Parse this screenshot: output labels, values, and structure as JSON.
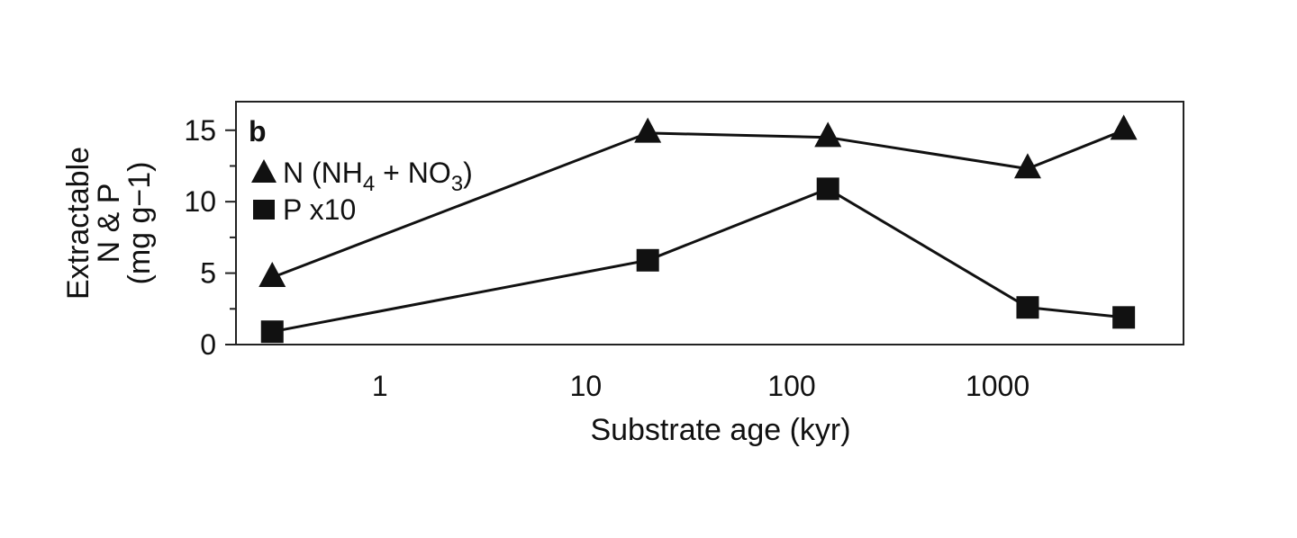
{
  "chart_data": {
    "type": "line",
    "panel_label": "b",
    "xlabel": "Substrate age (kyr)",
    "ylabel_lines": [
      "Extractable",
      "N & P",
      "(mg g−1)"
    ],
    "x_scale": "log",
    "xlim": [
      0.2,
      8000
    ],
    "ylim": [
      0,
      17
    ],
    "x_ticks": [
      1,
      10,
      100,
      1000
    ],
    "x_tick_labels": [
      "1",
      "10",
      "100",
      "1000"
    ],
    "y_ticks": [
      0,
      5,
      10,
      15
    ],
    "y_tick_labels": [
      "0",
      "5",
      "10",
      "15"
    ],
    "grid": false,
    "legend_position": "top-left",
    "series": [
      {
        "key": "N",
        "legend": {
          "main": "N (NH",
          "sub1": "4",
          "mid": " + NO",
          "sub2": "3",
          "end": ")"
        },
        "marker": "triangle",
        "x": [
          0.3,
          20,
          150,
          1400,
          4100
        ],
        "y": [
          4.7,
          14.8,
          14.5,
          12.3,
          15.0
        ]
      },
      {
        "key": "P",
        "legend": {
          "main": "P x10"
        },
        "marker": "square",
        "x": [
          0.3,
          20,
          150,
          1400,
          4100
        ],
        "y": [
          0.9,
          5.9,
          10.9,
          2.6,
          1.9
        ]
      }
    ]
  }
}
